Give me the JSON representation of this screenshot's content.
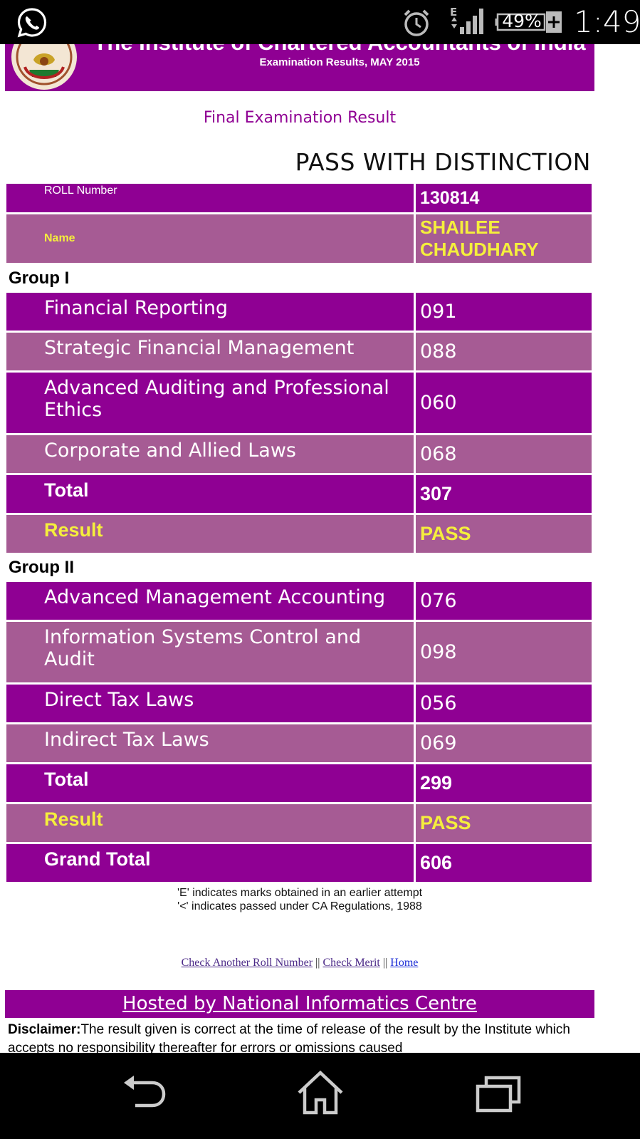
{
  "status_bar": {
    "battery": "49%",
    "time": "1:49",
    "network": "E"
  },
  "banner": {
    "title": "The Institute of Chartered Accountants of India",
    "subtitle": "Examination Results, MAY 2015"
  },
  "page_heading": "Final Examination Result",
  "result_status": "PASS WITH DISTINCTION",
  "candidate": {
    "roll_label": "ROLL Number",
    "roll_value": "130814",
    "name_label": "Name",
    "name_value": "SHAILEE CHAUDHARY"
  },
  "group1": {
    "title": "Group I",
    "subjects": [
      {
        "name": "Financial Reporting",
        "marks": "091"
      },
      {
        "name": "Strategic Financial Management",
        "marks": "088"
      },
      {
        "name": "Advanced Auditing and Professional Ethics",
        "marks": "060"
      },
      {
        "name": "Corporate and Allied Laws",
        "marks": "068"
      }
    ],
    "total_label": "Total",
    "total_value": "307",
    "result_label": "Result",
    "result_value": "PASS"
  },
  "group2": {
    "title": "Group II",
    "subjects": [
      {
        "name": "Advanced Management Accounting",
        "marks": "076"
      },
      {
        "name": "Information Systems Control and Audit",
        "marks": "098"
      },
      {
        "name": "Direct Tax Laws",
        "marks": "056"
      },
      {
        "name": "Indirect Tax Laws",
        "marks": "069"
      }
    ],
    "total_label": "Total",
    "total_value": "299",
    "result_label": "Result",
    "result_value": "PASS"
  },
  "grand_total": {
    "label": "Grand Total",
    "value": "606"
  },
  "notes": {
    "line1": "'E' indicates marks obtained in an earlier attempt",
    "line2": "'<' indicates passed under CA Regulations, 1988"
  },
  "links": {
    "check_another": "Check Another Roll Number",
    "sep1": " || ",
    "check_merit": "Check Merit",
    "sep2": " || ",
    "home": "Home"
  },
  "hosted_by": "Hosted by National Informatics Centre",
  "disclaimer": {
    "label": "Disclaimer:",
    "text": "The result given is correct at the time of release of the result by the Institute which accepts no responsibility thereafter for errors or omissions caused"
  },
  "colors": {
    "purple_dark": "#8f0093",
    "purple_light": "#a65b94",
    "highlight_yellow": "#f5ef3c"
  },
  "icons": [
    "whatsapp-icon",
    "alarm-icon",
    "signal-icon",
    "battery-icon",
    "icai-logo",
    "back-icon",
    "home-icon",
    "recent-apps-icon"
  ]
}
